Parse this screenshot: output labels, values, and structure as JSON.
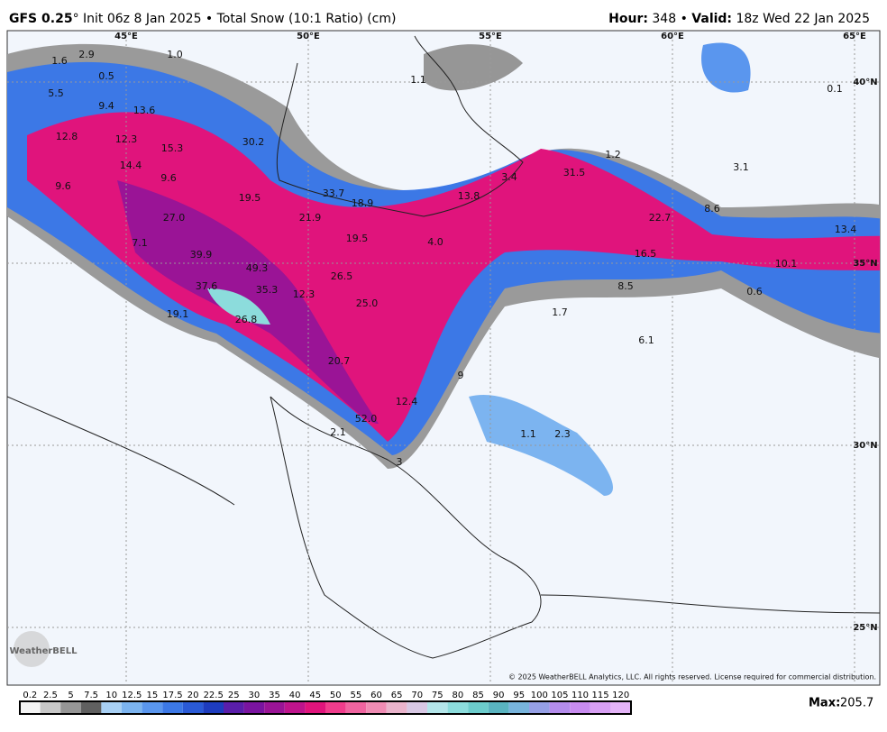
{
  "header": {
    "model": "GFS 0.25",
    "description": "° Init 06z 8 Jan 2025 • Total Snow (10:1 Ratio) (cm)",
    "hour_label": "Hour:",
    "hour_value": " 348 • ",
    "valid_label": "Valid:",
    "valid_value": " 18z Wed 22 Jan 2025"
  },
  "map": {
    "lon_labels": [
      "45°E",
      "50°E",
      "55°E",
      "60°E",
      "65°E"
    ],
    "lat_labels": [
      "40°N",
      "35°N",
      "30°N",
      "25°N"
    ],
    "value_labels": [
      "1.6",
      "2.9",
      "0.5",
      "1.0",
      "5.5",
      "9.4",
      "13.6",
      "12.8",
      "12.3",
      "15.3",
      "30.2",
      "14.4",
      "9.6",
      "9.6",
      "19.5",
      "33.7",
      "18.9",
      "13.8",
      "3.4",
      "31.5",
      "1.2",
      "27.0",
      "21.9",
      "19.5",
      "4.0",
      "22.7",
      "8.6",
      "13.4",
      "7.1",
      "39.9",
      "49.3",
      "16.5",
      "10.1",
      "37.6",
      "35.3",
      "12.3",
      "26.5",
      "8.5",
      "0.6",
      "25.0",
      "1.7",
      "19.1",
      "26.8",
      "6.1",
      "20.7",
      "9",
      "12.4",
      "52.0",
      "2.1",
      "1.1",
      "2.3",
      "3.1",
      "1.1",
      "0.1",
      "3"
    ],
    "logo": "WeatherBELL",
    "copyright": "© 2025 WeatherBELL Analytics, LLC. All rights reserved. License required for commercial distribution."
  },
  "colorbar": {
    "levels": [
      0.2,
      2.5,
      5,
      7.5,
      10,
      12.5,
      15,
      17.5,
      20,
      22.5,
      25,
      30,
      35,
      40,
      45,
      50,
      55,
      60,
      65,
      70,
      75,
      80,
      85,
      90,
      95,
      100,
      105,
      110,
      115,
      120
    ],
    "colors": [
      "#f4f4f4",
      "#c8c8c8",
      "#969696",
      "#606060",
      "#a8d0f4",
      "#7cb4f0",
      "#5a96ee",
      "#3c78e6",
      "#2a5ad6",
      "#1e3cbe",
      "#5a1eaa",
      "#7a14a0",
      "#9a1496",
      "#be148c",
      "#e0147c",
      "#f03c8c",
      "#f064a0",
      "#f08cb4",
      "#eab4cc",
      "#d8c8e4",
      "#b4e6ea",
      "#8cdcdc",
      "#6ccccc",
      "#5ab4c0",
      "#78b4dc",
      "#96a0e6",
      "#b48cec",
      "#c88cf0",
      "#d8a0f4",
      "#e4b4f8"
    ],
    "max_label": "Max:",
    "max_value": 205.7
  }
}
